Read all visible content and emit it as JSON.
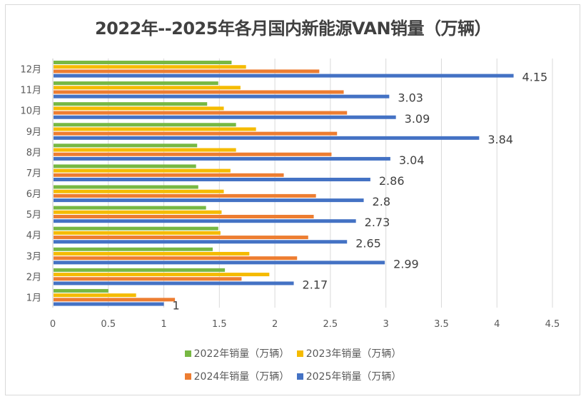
{
  "chart_data": {
    "type": "bar",
    "orientation": "horizontal",
    "title": "2022年--2025年各月国内新能源VAN销量（万辆）",
    "xlabel": "",
    "ylabel": "",
    "xlim": [
      0,
      4.5
    ],
    "x_ticks": [
      "0",
      "0.5",
      "1",
      "1.5",
      "2",
      "2.5",
      "3",
      "3.5",
      "4",
      "4.5"
    ],
    "x_tick_values": [
      0,
      0.5,
      1,
      1.5,
      2,
      2.5,
      3,
      3.5,
      4,
      4.5
    ],
    "grid": true,
    "legend_position": "bottom",
    "categories": [
      "1月",
      "2月",
      "3月",
      "4月",
      "5月",
      "6月",
      "7月",
      "8月",
      "9月",
      "10月",
      "11月",
      "12月"
    ],
    "series": [
      {
        "name": "2022年销量（万辆）",
        "color": "#77B843",
        "values": [
          0.5,
          1.55,
          1.44,
          1.49,
          1.38,
          1.31,
          1.29,
          1.3,
          1.65,
          1.39,
          1.49,
          1.61
        ]
      },
      {
        "name": "2023年销量（万辆）",
        "color": "#F5BB00",
        "values": [
          0.75,
          1.95,
          1.77,
          1.51,
          1.52,
          1.54,
          1.6,
          1.65,
          1.83,
          1.54,
          1.69,
          1.74
        ]
      },
      {
        "name": "2024年销量（万辆）",
        "color": "#ED7D31",
        "values": [
          1.1,
          1.7,
          2.2,
          2.3,
          2.35,
          2.37,
          2.08,
          2.51,
          2.56,
          2.65,
          2.62,
          2.4
        ]
      },
      {
        "name": "2025年销量（万辆）",
        "color": "#4472C4",
        "values": [
          1,
          2.17,
          2.99,
          2.65,
          2.73,
          2.8,
          2.86,
          3.04,
          3.84,
          3.09,
          3.03,
          4.15
        ],
        "data_labels": [
          "1",
          "2.17",
          "2.99",
          "2.65",
          "2.73",
          "2.8",
          "2.86",
          "3.04",
          "3.84",
          "3.09",
          "3.03",
          "4.15"
        ]
      }
    ]
  }
}
